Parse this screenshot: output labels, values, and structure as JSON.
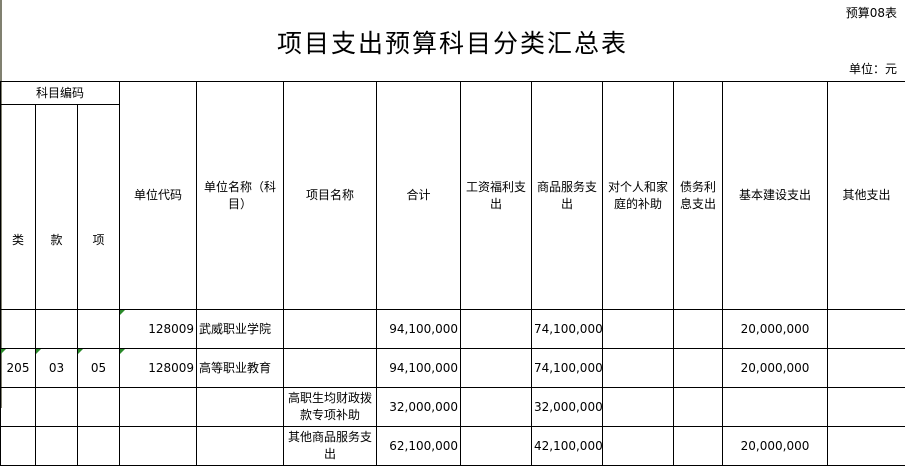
{
  "sheet_no": "预算08表",
  "title": "项目支出预算科目分类汇总表",
  "unit": "单位：元",
  "header": {
    "subject_code": "科目编码",
    "lei": "类",
    "kuan": "款",
    "xiang": "项",
    "unit_code": "单位代码",
    "unit_name": "单位名称（科目）",
    "project_name": "项目名称",
    "total": "合计",
    "wages": "工资福利支出",
    "goods": "商品服务支出",
    "subsidy": "对个人和家庭的补助",
    "debt": "债务利息支出",
    "construction": "基本建设支出",
    "other": "其他支出"
  },
  "rows": [
    {
      "lei": "",
      "kuan": "",
      "xiang": "",
      "unit_code": "128009",
      "unit_name": "武威职业学院",
      "project_name": "",
      "total": "94,100,000",
      "wages": "",
      "goods": "74,100,000",
      "subsidy": "",
      "debt": "",
      "construction": "20,000,000",
      "other": ""
    },
    {
      "lei": "205",
      "kuan": "03",
      "xiang": "05",
      "unit_code": "128009",
      "unit_name": "高等职业教育",
      "project_name": "",
      "total": "94,100,000",
      "wages": "",
      "goods": "74,100,000",
      "subsidy": "",
      "debt": "",
      "construction": "20,000,000",
      "other": ""
    },
    {
      "lei": "",
      "kuan": "",
      "xiang": "",
      "unit_code": "",
      "unit_name": "",
      "project_name": "高职生均财政拨款专项补助",
      "total": "32,000,000",
      "wages": "",
      "goods": "32,000,000",
      "subsidy": "",
      "debt": "",
      "construction": "",
      "other": ""
    },
    {
      "lei": "",
      "kuan": "",
      "xiang": "",
      "unit_code": "",
      "unit_name": "",
      "project_name": "其他商品服务支出",
      "total": "62,100,000",
      "wages": "",
      "goods": "42,100,000",
      "subsidy": "",
      "debt": "",
      "construction": "20,000,000",
      "other": ""
    }
  ]
}
